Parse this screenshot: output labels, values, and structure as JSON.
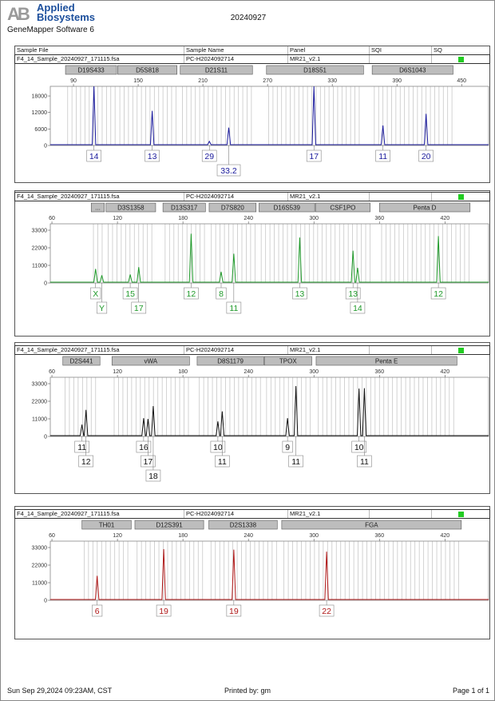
{
  "header": {
    "logo_mark": "AB",
    "logo_line1": "Applied",
    "logo_line2": "Biosystems",
    "software": "GeneMapper Software 6",
    "title": "20240927"
  },
  "table_headers": [
    "Sample File",
    "Sample Name",
    "Panel",
    "SQI",
    "SQ"
  ],
  "footer": {
    "printed_at": "Sun Sep 29,2024 09:23AM, CST",
    "printed_by": "Printed by: gm",
    "page": "Page 1 of 1"
  },
  "chart_data": [
    {
      "type": "line",
      "sample_file": "F4_14_Sample_20240927_171115.fsa",
      "sample_name": "PC-H2024092714",
      "panel": "MR21_v2.1",
      "sqi": "",
      "sq_color": "#22cc22",
      "color": "#1a1a9c",
      "xlim": [
        68.5,
        475
      ],
      "ylim": [
        0,
        21500
      ],
      "xticks": [
        90,
        150,
        210,
        270,
        330,
        390,
        450
      ],
      "yticks": [
        0,
        6000,
        12000,
        18000
      ],
      "markers": [
        {
          "name": "D19S433",
          "start": 82.6,
          "end": 130
        },
        {
          "name": "D5S818",
          "start": 131,
          "end": 186
        },
        {
          "name": "D21S11",
          "start": 189,
          "end": 256
        },
        {
          "name": "D18S51",
          "start": 269,
          "end": 359
        },
        {
          "name": "D6S1043",
          "start": 367,
          "end": 442
        }
      ],
      "peaks": [
        {
          "allele": "14",
          "size": 109,
          "height": 21500
        },
        {
          "allele": "13",
          "size": 163,
          "height": 12600
        },
        {
          "allele": "29",
          "size": 216,
          "height": 1500
        },
        {
          "allele": "33.2",
          "size": 234,
          "height": 6500
        },
        {
          "allele": "17",
          "size": 313,
          "height": 21500
        },
        {
          "allele": "11",
          "size": 377,
          "height": 7300
        },
        {
          "allele": "20",
          "size": 417,
          "height": 11500
        }
      ]
    },
    {
      "type": "line",
      "sample_file": "F4_14_Sample_20240927_171115.fsa",
      "sample_name": "PC-H2024092714",
      "panel": "MR21_v2.1",
      "sqi": "",
      "sq_color": "#22cc22",
      "color": "#1f9a2a",
      "xlim": [
        58.5,
        460
      ],
      "ylim": [
        0,
        37000
      ],
      "xticks": [
        60,
        120,
        180,
        240,
        300,
        360,
        420
      ],
      "yticks": [
        0,
        11000,
        22000,
        33000
      ],
      "markers": [
        {
          "name": "...",
          "start": 96,
          "end": 108
        },
        {
          "name": "D3S1358",
          "start": 109.5,
          "end": 155
        },
        {
          "name": "D13S317",
          "start": 161.7,
          "end": 200.6
        },
        {
          "name": "D7S820",
          "start": 204,
          "end": 247
        },
        {
          "name": "D16S539",
          "start": 249.7,
          "end": 300.7
        },
        {
          "name": "CSF1PO",
          "start": 301.4,
          "end": 351.5
        },
        {
          "name": "Penta D",
          "start": 360,
          "end": 443
        }
      ],
      "peaks": [
        {
          "allele": "X",
          "size": 100,
          "height": 8800
        },
        {
          "allele": "Y",
          "size": 105.7,
          "height": 4800
        },
        {
          "allele": "15",
          "size": 131.7,
          "height": 5300
        },
        {
          "allele": "17",
          "size": 139.5,
          "height": 9900
        },
        {
          "allele": "12",
          "size": 187.5,
          "height": 30800
        },
        {
          "allele": "8",
          "size": 215,
          "height": 7000
        },
        {
          "allele": "11",
          "size": 226.6,
          "height": 18300
        },
        {
          "allele": "13",
          "size": 287,
          "height": 28400
        },
        {
          "allele": "13",
          "size": 335.8,
          "height": 20200
        },
        {
          "allele": "14",
          "size": 340,
          "height": 9500
        },
        {
          "allele": "12",
          "size": 414,
          "height": 29300
        }
      ]
    },
    {
      "type": "line",
      "sample_file": "F4_14_Sample_20240927_171115.fsa",
      "sample_name": "PC-H2024092714",
      "panel": "MR21_v2.1",
      "sqi": "",
      "sq_color": "#22cc22",
      "color": "#111111",
      "xlim": [
        58.5,
        460
      ],
      "ylim": [
        0,
        37000
      ],
      "xticks": [
        60,
        120,
        180,
        240,
        300,
        360,
        420
      ],
      "yticks": [
        0,
        11000,
        22000,
        33000
      ],
      "markers": [
        {
          "name": "D2S441",
          "start": 70,
          "end": 104
        },
        {
          "name": "vWA",
          "start": 115,
          "end": 186
        },
        {
          "name": "D8S1179",
          "start": 193,
          "end": 254
        },
        {
          "name": "TPOX",
          "start": 254.6,
          "end": 298
        },
        {
          "name": "Penta E",
          "start": 302,
          "end": 431
        }
      ],
      "peaks": [
        {
          "allele": "11",
          "size": 87.5,
          "height": 7400
        },
        {
          "allele": "12",
          "size": 91.2,
          "height": 16600
        },
        {
          "allele": "16",
          "size": 144,
          "height": 11400
        },
        {
          "allele": "17",
          "size": 148,
          "height": 10900
        },
        {
          "allele": "18",
          "size": 152.8,
          "height": 19000
        },
        {
          "allele": "10",
          "size": 212,
          "height": 9400
        },
        {
          "allele": "11",
          "size": 216,
          "height": 15700
        },
        {
          "allele": "9",
          "size": 275.8,
          "height": 11400
        },
        {
          "allele": "11",
          "size": 283.5,
          "height": 31500
        },
        {
          "allele": "10",
          "size": 341.3,
          "height": 29900
        },
        {
          "allele": "11",
          "size": 346.2,
          "height": 30200
        }
      ]
    },
    {
      "type": "line",
      "sample_file": "F4_14_Sample_20240927_171115.fsa",
      "sample_name": "PC-H2024092714",
      "panel": "MR21_v2.1",
      "sqi": "",
      "sq_color": "#22cc22",
      "color": "#b01818",
      "xlim": [
        58.5,
        460
      ],
      "ylim": [
        0,
        37000
      ],
      "xticks": [
        60,
        120,
        180,
        240,
        300,
        360,
        420
      ],
      "yticks": [
        0,
        11000,
        22000,
        33000
      ],
      "markers": [
        {
          "name": "TH01",
          "start": 87.5,
          "end": 132.6
        },
        {
          "name": "D12S391",
          "start": 136,
          "end": 199
        },
        {
          "name": "D2S1338",
          "start": 203.7,
          "end": 266.4
        },
        {
          "name": "FGA",
          "start": 270.5,
          "end": 435
        }
      ],
      "peaks": [
        {
          "allele": "6",
          "size": 101.4,
          "height": 15300
        },
        {
          "allele": "19",
          "size": 162.4,
          "height": 32000
        },
        {
          "allele": "19",
          "size": 226.6,
          "height": 31700
        },
        {
          "allele": "22",
          "size": 311.6,
          "height": 30400
        }
      ]
    }
  ]
}
